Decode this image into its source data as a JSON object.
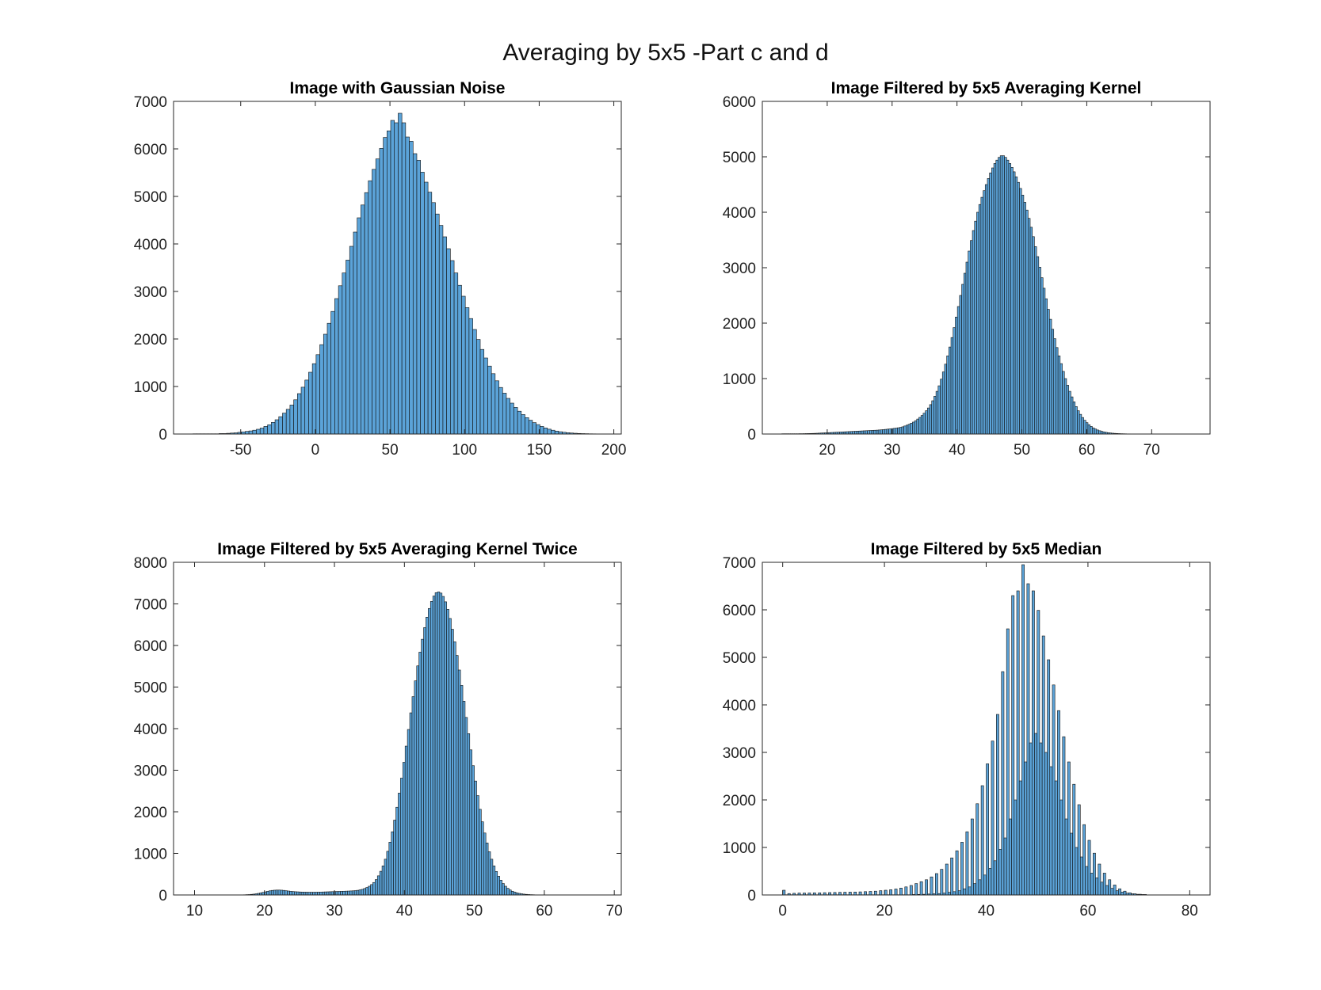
{
  "figure": {
    "title": "Averaging by 5x5 -Part c and d"
  },
  "colors": {
    "bar_fill": "#5ba3d8",
    "bar_edge": "#101010",
    "axis": "#262626"
  },
  "chart_data": [
    {
      "type": "bar",
      "title": "Image with Gaussian Noise",
      "xlabel": "",
      "ylabel": "",
      "xlim": [
        -95,
        205
      ],
      "ylim": [
        0,
        7000
      ],
      "xticks": [
        -50,
        0,
        50,
        100,
        150,
        200
      ],
      "yticks": [
        0,
        1000,
        2000,
        3000,
        4000,
        5000,
        6000,
        7000
      ],
      "grid": false,
      "bin_start": -82,
      "bin_width": 2.5,
      "values": [
        5,
        5,
        5,
        5,
        5,
        5,
        5,
        10,
        10,
        15,
        20,
        25,
        35,
        45,
        55,
        65,
        80,
        100,
        125,
        160,
        195,
        245,
        300,
        365,
        440,
        520,
        610,
        720,
        850,
        985,
        1135,
        1300,
        1480,
        1670,
        1880,
        2100,
        2330,
        2580,
        2850,
        3120,
        3390,
        3660,
        3950,
        4250,
        4550,
        4820,
        5080,
        5330,
        5570,
        5790,
        6010,
        6240,
        6380,
        6600,
        6550,
        6750,
        6550,
        6250,
        6160,
        5900,
        5760,
        5510,
        5300,
        5090,
        4870,
        4630,
        4390,
        4150,
        3900,
        3650,
        3390,
        3130,
        2900,
        2660,
        2430,
        2200,
        1990,
        1780,
        1600,
        1430,
        1270,
        1120,
        980,
        860,
        750,
        650,
        560,
        480,
        410,
        345,
        290,
        240,
        198,
        160,
        128,
        102,
        80,
        62,
        48,
        37,
        28,
        21,
        16,
        12,
        9,
        7,
        5,
        4,
        3,
        3,
        2,
        2,
        2,
        1
      ]
    },
    {
      "type": "bar",
      "title": "Image Filtered by 5x5 Averaging Kernel",
      "xlabel": "",
      "ylabel": "",
      "xlim": [
        10,
        79
      ],
      "ylim": [
        0,
        6000
      ],
      "xticks": [
        20,
        30,
        40,
        50,
        60,
        70
      ],
      "yticks": [
        0,
        1000,
        2000,
        3000,
        4000,
        5000,
        6000
      ],
      "grid": false,
      "bin_start": 13,
      "bin_width": 0.33,
      "values": [
        5,
        5,
        5,
        5,
        5,
        5,
        5,
        5,
        6,
        6,
        7,
        8,
        9,
        10,
        11,
        12,
        14,
        16,
        18,
        20,
        22,
        24,
        26,
        28,
        30,
        32,
        34,
        36,
        38,
        40,
        42,
        44,
        46,
        48,
        50,
        52,
        54,
        56,
        58,
        60,
        62,
        64,
        66,
        68,
        70,
        73,
        76,
        80,
        84,
        88,
        92,
        97,
        102,
        107,
        113,
        120,
        130,
        145,
        160,
        175,
        195,
        215,
        240,
        270,
        300,
        335,
        375,
        420,
        470,
        530,
        600,
        680,
        770,
        870,
        990,
        1120,
        1260,
        1410,
        1570,
        1740,
        1920,
        2110,
        2300,
        2500,
        2700,
        2900,
        3100,
        3300,
        3490,
        3670,
        3840,
        4000,
        4140,
        4270,
        4390,
        4500,
        4610,
        4710,
        4800,
        4880,
        4940,
        4990,
        5020,
        5020,
        4990,
        4940,
        4880,
        4810,
        4730,
        4640,
        4540,
        4430,
        4310,
        4180,
        4040,
        3890,
        3730,
        3560,
        3380,
        3200,
        3010,
        2820,
        2630,
        2440,
        2250,
        2070,
        1890,
        1720,
        1560,
        1410,
        1270,
        1130,
        1000,
        880,
        770,
        670,
        580,
        495,
        420,
        355,
        298,
        248,
        205,
        168,
        137,
        111,
        90,
        73,
        59,
        47,
        38,
        30,
        24,
        19,
        15,
        12,
        10,
        8,
        6,
        5,
        4,
        3,
        3,
        2,
        2,
        2,
        1,
        1,
        1,
        1,
        1,
        1
      ]
    },
    {
      "type": "bar",
      "title": "Image Filtered by 5x5 Averaging Kernel Twice",
      "xlabel": "",
      "ylabel": "",
      "xlim": [
        7,
        71
      ],
      "ylim": [
        0,
        8000
      ],
      "xticks": [
        10,
        20,
        30,
        40,
        50,
        60,
        70
      ],
      "yticks": [
        0,
        1000,
        2000,
        3000,
        4000,
        5000,
        6000,
        7000,
        8000
      ],
      "grid": false,
      "bin_start": 17,
      "bin_width": 0.33,
      "values": [
        5,
        8,
        10,
        15,
        20,
        28,
        38,
        50,
        62,
        75,
        88,
        100,
        110,
        115,
        118,
        118,
        115,
        110,
        102,
        95,
        88,
        82,
        78,
        75,
        72,
        70,
        68,
        67,
        66,
        66,
        66,
        67,
        68,
        70,
        72,
        74,
        76,
        78,
        80,
        82,
        84,
        86,
        88,
        90,
        92,
        94,
        97,
        100,
        105,
        112,
        122,
        135,
        155,
        180,
        210,
        250,
        300,
        370,
        460,
        570,
        700,
        860,
        1050,
        1270,
        1520,
        1800,
        2110,
        2450,
        2810,
        3190,
        3580,
        3980,
        4380,
        4770,
        5150,
        5510,
        5840,
        6150,
        6430,
        6680,
        6890,
        7060,
        7190,
        7270,
        7290,
        7260,
        7180,
        7050,
        6870,
        6650,
        6390,
        6090,
        5760,
        5410,
        5040,
        4660,
        4270,
        3880,
        3490,
        3110,
        2740,
        2390,
        2060,
        1760,
        1490,
        1250,
        1040,
        860,
        700,
        565,
        450,
        355,
        275,
        210,
        160,
        120,
        90,
        68,
        50,
        38,
        28,
        20,
        15,
        11,
        8,
        6,
        4,
        3,
        2,
        2,
        1,
        1
      ]
    },
    {
      "type": "bar",
      "title": "Image Filtered by 5x5 Median",
      "xlabel": "",
      "ylabel": "",
      "xlim": [
        -4,
        84
      ],
      "ylim": [
        0,
        7000
      ],
      "xticks": [
        0,
        20,
        40,
        60,
        80
      ],
      "yticks": [
        0,
        1000,
        2000,
        3000,
        4000,
        5000,
        6000,
        7000
      ],
      "grid": false,
      "bin_start": 0,
      "bin_width": 0.5,
      "values": [
        100,
        5,
        30,
        5,
        35,
        5,
        40,
        5,
        40,
        5,
        42,
        5,
        45,
        5,
        45,
        5,
        48,
        5,
        50,
        5,
        52,
        5,
        55,
        5,
        58,
        5,
        60,
        5,
        62,
        5,
        65,
        5,
        70,
        5,
        75,
        5,
        80,
        5,
        90,
        5,
        100,
        5,
        110,
        5,
        125,
        5,
        145,
        5,
        170,
        5,
        200,
        10,
        240,
        12,
        280,
        15,
        320,
        20,
        380,
        25,
        450,
        30,
        540,
        40,
        650,
        55,
        780,
        70,
        930,
        90,
        1110,
        130,
        1330,
        170,
        1600,
        240,
        1920,
        320,
        2300,
        420,
        2760,
        560,
        3240,
        720,
        3800,
        960,
        4700,
        1200,
        5600,
        1600,
        6300,
        2000,
        6400,
        2400,
        6950,
        2800,
        6550,
        3200,
        6400,
        3400,
        5990,
        3200,
        5450,
        3000,
        4950,
        2700,
        4420,
        2400,
        3880,
        2000,
        3330,
        1600,
        2800,
        1300,
        2330,
        1000,
        1900,
        800,
        1480,
        600,
        1150,
        460,
        880,
        360,
        650,
        270,
        460,
        200,
        320,
        140,
        210,
        90,
        130,
        60,
        80,
        40,
        45,
        25,
        25,
        15,
        15,
        10,
        10
      ]
    }
  ]
}
